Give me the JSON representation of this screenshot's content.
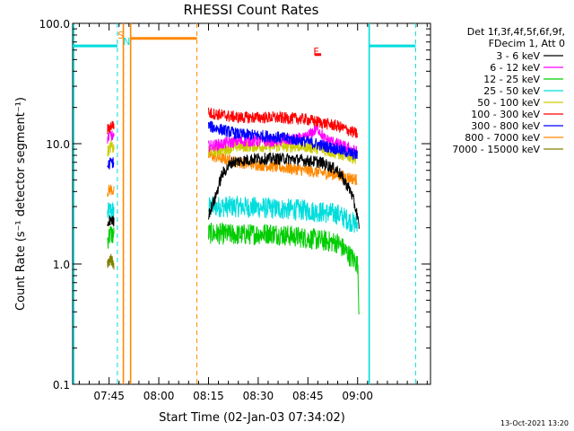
{
  "chart_data": {
    "type": "line",
    "title": "RHESSI Count Rates",
    "xlabel": "Start Time (02-Jan-03 07:34:02)",
    "ylabel": "Count Rate (s⁻¹ detector segment⁻¹)",
    "yscale": "log",
    "ylim": [
      0.1,
      100
    ],
    "xlim_minutes": [
      0,
      108
    ],
    "x_ticks": [
      {
        "minute": 11,
        "label": "07:45"
      },
      {
        "minute": 26,
        "label": "08:00"
      },
      {
        "minute": 41,
        "label": "08:15"
      },
      {
        "minute": 56,
        "label": "08:30"
      },
      {
        "minute": 71,
        "label": "08:45"
      },
      {
        "minute": 86,
        "label": "09:00"
      }
    ],
    "y_ticks": [
      {
        "value": 0.1,
        "label": "0.1"
      },
      {
        "value": 1,
        "label": "1.0"
      },
      {
        "value": 10,
        "label": "10.0"
      },
      {
        "value": 100,
        "label": "100.0"
      }
    ],
    "grid": false,
    "legend_position": "top-right",
    "legend_header": [
      "Det 1f,3f,4f,5f,6f,9f,",
      "FDecim 1, Att 0"
    ],
    "series": [
      {
        "name": "3 - 6 keV",
        "color": "#000000",
        "segments": [
          [
            [
              10.5,
              2.0
            ],
            [
              11.5,
              2.4
            ],
            [
              12.5,
              2.2
            ]
          ],
          [
            [
              41,
              2.6
            ],
            [
              43,
              3.5
            ],
            [
              45,
              5.5
            ],
            [
              48,
              7.0
            ],
            [
              55,
              7.5
            ],
            [
              65,
              7.5
            ],
            [
              75,
              7.0
            ],
            [
              80,
              6.0
            ],
            [
              84,
              4.0
            ],
            [
              86,
              2.5
            ],
            [
              86.5,
              1.8
            ]
          ]
        ]
      },
      {
        "name": "6 - 12 keV",
        "color": "#ff00ff",
        "segments": [
          [
            [
              10.5,
              11
            ],
            [
              11.5,
              12
            ],
            [
              12.5,
              11
            ]
          ],
          [
            [
              41,
              9.5
            ],
            [
              50,
              10.5
            ],
            [
              60,
              10.5
            ],
            [
              70,
              11
            ],
            [
              74,
              13.5
            ],
            [
              76,
              11
            ],
            [
              86,
              8.5
            ]
          ]
        ]
      },
      {
        "name": "12 - 25 keV",
        "color": "#00cc00",
        "segments": [
          [
            [
              10.5,
              1.6
            ],
            [
              11.5,
              1.8
            ],
            [
              12.5,
              1.7
            ]
          ],
          [
            [
              41,
              1.8
            ],
            [
              50,
              1.75
            ],
            [
              60,
              1.8
            ],
            [
              70,
              1.65
            ],
            [
              80,
              1.5
            ],
            [
              86,
              1.0
            ],
            [
              86.5,
              0.35
            ]
          ]
        ]
      },
      {
        "name": "25 - 50 keV",
        "color": "#00dddd",
        "segments": [
          [
            [
              10.5,
              2.6
            ],
            [
              11.5,
              2.8
            ],
            [
              12.5,
              2.7
            ]
          ],
          [
            [
              41,
              3.0
            ],
            [
              50,
              3.0
            ],
            [
              60,
              2.9
            ],
            [
              70,
              2.8
            ],
            [
              80,
              2.6
            ],
            [
              86,
              2.1
            ]
          ]
        ]
      },
      {
        "name": "50 - 100 keV",
        "color": "#cccc00",
        "segments": [
          [
            [
              10.5,
              8.5
            ],
            [
              11.5,
              9.5
            ],
            [
              12.5,
              9
            ]
          ],
          [
            [
              41,
              8.5
            ],
            [
              50,
              9.5
            ],
            [
              60,
              9.5
            ],
            [
              70,
              9.5
            ],
            [
              75,
              9.0
            ],
            [
              86,
              7.5
            ]
          ]
        ]
      },
      {
        "name": "100 - 300 keV",
        "color": "#ff0000",
        "segments": [
          [
            [
              10.5,
              13
            ],
            [
              11.5,
              14
            ],
            [
              12.5,
              14.5
            ]
          ],
          [
            [
              41,
              18
            ],
            [
              50,
              16.5
            ],
            [
              60,
              16.5
            ],
            [
              70,
              16
            ],
            [
              80,
              14
            ],
            [
              86,
              12
            ]
          ]
        ]
      },
      {
        "name": "300 - 800 keV",
        "color": "#0000ff",
        "segments": [
          [
            [
              10.5,
              6.5
            ],
            [
              11.5,
              7
            ],
            [
              12.5,
              7
            ]
          ],
          [
            [
              41,
              14
            ],
            [
              50,
              12
            ],
            [
              60,
              11.5
            ],
            [
              70,
              10.5
            ],
            [
              80,
              9.0
            ],
            [
              86,
              8.0
            ]
          ]
        ]
      },
      {
        "name": "800 - 7000 keV",
        "color": "#ff8800",
        "segments": [
          [
            [
              10.5,
              4.0
            ],
            [
              11.5,
              4.2
            ],
            [
              12.5,
              4.0
            ]
          ],
          [
            [
              41,
              8.0
            ],
            [
              50,
              7.0
            ],
            [
              60,
              6.5
            ],
            [
              70,
              6.0
            ],
            [
              80,
              5.5
            ],
            [
              86,
              5.0
            ]
          ]
        ]
      },
      {
        "name": "7000 - 15000 keV",
        "color": "#808000",
        "segments": [
          [
            [
              10.5,
              1.0
            ],
            [
              11.5,
              1.1
            ],
            [
              12.5,
              1.0
            ]
          ]
        ]
      }
    ],
    "markers": [
      {
        "label": "S",
        "minute": 14.5,
        "color": "#ff8800"
      },
      {
        "label": "N",
        "minute": 16.3,
        "color": "#00dddd"
      },
      {
        "label": "F",
        "minute": 73.5,
        "color": "#ff0000"
      }
    ],
    "attenuator_bars": [
      {
        "minute_start": 0,
        "minute_end": 13.5,
        "value": 65,
        "color": "#00dddd"
      },
      {
        "minute_start": 17.5,
        "minute_end": 37.5,
        "value": 75,
        "color": "#ff8800"
      },
      {
        "minute_start": 73.0,
        "minute_end": 75.0,
        "value": 55,
        "color": "#ff0000"
      },
      {
        "minute_start": 89.5,
        "minute_end": 103.5,
        "value": 65,
        "color": "#00dddd"
      }
    ],
    "vertical_lines": [
      {
        "minute": 0.3,
        "color": "#00dddd",
        "style": "solid"
      },
      {
        "minute": 13.5,
        "color": "#00dddd",
        "style": "dashed"
      },
      {
        "minute": 15.3,
        "color": "#ff8800",
        "style": "solid"
      },
      {
        "minute": 17.5,
        "color": "#ff8800",
        "style": "solid"
      },
      {
        "minute": 37.5,
        "color": "#ff8800",
        "style": "dashed"
      },
      {
        "minute": 89.5,
        "color": "#00dddd",
        "style": "solid"
      },
      {
        "minute": 103.5,
        "color": "#00dddd",
        "style": "dashed"
      }
    ],
    "footer_timestamp": "13-Oct-2021 13:20"
  }
}
